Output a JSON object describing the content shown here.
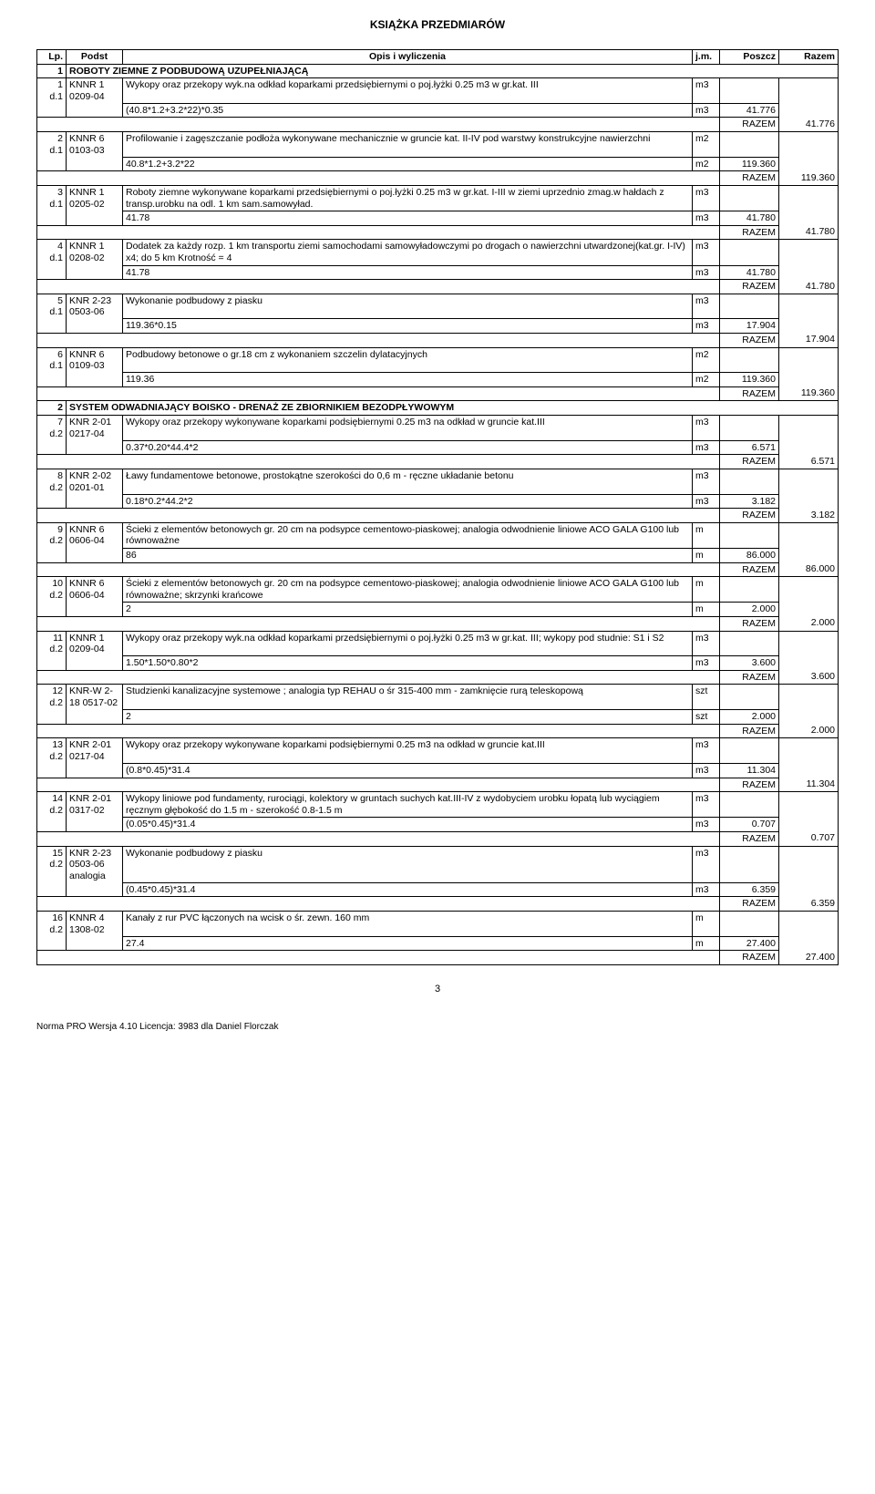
{
  "title": "KSIĄŻKA PRZEDMIARÓW",
  "header": {
    "lp": "Lp.",
    "podst": "Podst",
    "opis": "Opis i wyliczenia",
    "jm": "j.m.",
    "poszcz": "Poszcz",
    "razem": "Razem"
  },
  "section1": {
    "num": "1",
    "title": "ROBOTY ZIEMNE Z PODBUDOWĄ UZUPEŁNIAJĄCĄ"
  },
  "r1": {
    "lp": "1",
    "d": "d.1",
    "podst": "KNNR 1 0209-04",
    "opis": "Wykopy oraz przekopy wyk.na odkład koparkami przedsiębiernymi o poj.łyżki 0.25 m3 w gr.kat. III",
    "calc": "(40.8*1.2+3.2*22)*0.35",
    "jm": "m3",
    "poszcz": "41.776",
    "razem": "41.776"
  },
  "r2": {
    "lp": "2",
    "d": "d.1",
    "podst": "KNNR 6 0103-03",
    "opis": "Profilowanie i zagęszczanie podłoża wykonywane mechanicznie w gruncie kat. II-IV pod warstwy konstrukcyjne nawierzchni",
    "calc": "40.8*1.2+3.2*22",
    "jm": "m2",
    "poszcz": "119.360",
    "razem": "119.360"
  },
  "r3": {
    "lp": "3",
    "d": "d.1",
    "podst": "KNNR 1 0205-02",
    "opis": "Roboty ziemne wykonywane koparkami przedsiębiernymi o poj.łyżki 0.25 m3 w gr.kat. I-III w ziemi uprzednio zmag.w hałdach z transp.urobku na odl. 1 km sam.samowyład.",
    "calc": "41.78",
    "jm": "m3",
    "poszcz": "41.780",
    "razem": "41.780"
  },
  "r4": {
    "lp": "4",
    "d": "d.1",
    "podst": "KNNR 1 0208-02",
    "opis": "Dodatek za każdy rozp. 1 km transportu ziemi samochodami samowyładowczymi po drogach o nawierzchni utwardzonej(kat.gr. I-IV) x4; do 5 km Krotność = 4",
    "calc": "41.78",
    "jm": "m3",
    "poszcz": "41.780",
    "razem": "41.780"
  },
  "r5": {
    "lp": "5",
    "d": "d.1",
    "podst": "KNR 2-23 0503-06",
    "opis": "Wykonanie podbudowy z piasku",
    "calc": "119.36*0.15",
    "jm": "m3",
    "poszcz": "17.904",
    "razem": "17.904"
  },
  "r6": {
    "lp": "6",
    "d": "d.1",
    "podst": "KNNR 6 0109-03",
    "opis": "Podbudowy betonowe o gr.18 cm z wykonaniem szczelin dylatacyjnych",
    "calc": "119.36",
    "jm": "m2",
    "poszcz": "119.360",
    "razem": "119.360"
  },
  "section2": {
    "num": "2",
    "title": "SYSTEM ODWADNIAJĄCY BOISKO - DRENAŻ ZE ZBIORNIKIEM BEZODPŁYWOWYM"
  },
  "r7": {
    "lp": "7",
    "d": "d.2",
    "podst": "KNR 2-01 0217-04",
    "opis": "Wykopy oraz przekopy wykonywane koparkami podsiębiernymi 0.25 m3 na odkład w gruncie kat.III",
    "calc": "0.37*0.20*44.4*2",
    "jm": "m3",
    "poszcz": "6.571",
    "razem": "6.571"
  },
  "r8": {
    "lp": "8",
    "d": "d.2",
    "podst": "KNR 2-02 0201-01",
    "opis": "Ławy fundamentowe betonowe, prostokątne szerokości do 0,6 m - ręczne układanie betonu",
    "calc": "0.18*0.2*44.2*2",
    "jm": "m3",
    "poszcz": "3.182",
    "razem": "3.182"
  },
  "r9": {
    "lp": "9",
    "d": "d.2",
    "podst": "KNNR 6 0606-04",
    "opis": "Ścieki z elementów betonowych gr. 20 cm na podsypce cementowo-piaskowej; analogia odwodnienie liniowe ACO GALA G100 lub równoważne",
    "calc": "86",
    "jm": "m",
    "poszcz": "86.000",
    "razem": "86.000"
  },
  "r10": {
    "lp": "10",
    "d": "d.2",
    "podst": "KNNR 6 0606-04",
    "opis": "Ścieki z elementów betonowych gr. 20 cm na podsypce cementowo-piaskowej; analogia odwodnienie liniowe ACO GALA G100 lub równoważne; skrzynki krańcowe",
    "calc": "2",
    "jm": "m",
    "poszcz": "2.000",
    "razem": "2.000"
  },
  "r11": {
    "lp": "11",
    "d": "d.2",
    "podst": "KNNR 1 0209-04",
    "opis": "Wykopy oraz przekopy wyk.na odkład koparkami przedsiębiernymi o poj.łyżki 0.25 m3 w gr.kat. III; wykopy pod studnie: S1 i S2",
    "calc": "1.50*1.50*0.80*2",
    "jm": "m3",
    "poszcz": "3.600",
    "razem": "3.600"
  },
  "r12": {
    "lp": "12",
    "d": "d.2",
    "podst": "KNR-W 2-18 0517-02",
    "opis": "Studzienki kanalizacyjne systemowe ; analogia typ REHAU o śr 315-400 mm - zamknięcie rurą teleskopową",
    "calc": "2",
    "jm": "szt",
    "poszcz": "2.000",
    "razem": "2.000"
  },
  "r13": {
    "lp": "13",
    "d": "d.2",
    "podst": "KNR 2-01 0217-04",
    "opis": "Wykopy oraz przekopy wykonywane koparkami podsiębiernymi 0.25 m3 na odkład w gruncie kat.III",
    "calc": "(0.8*0.45)*31.4",
    "jm": "m3",
    "poszcz": "11.304",
    "razem": "11.304"
  },
  "r14": {
    "lp": "14",
    "d": "d.2",
    "podst": "KNR 2-01 0317-02",
    "opis": "Wykopy liniowe pod fundamenty, rurociągi, kolektory w gruntach suchych kat.III-IV z wydobyciem urobku łopatą lub wyciągiem ręcznym głębokość do 1.5 m - szerokość 0.8-1.5 m",
    "calc": "(0.05*0.45)*31.4",
    "jm": "m3",
    "poszcz": "0.707",
    "razem": "0.707"
  },
  "r15": {
    "lp": "15",
    "d": "d.2",
    "podst": "KNR 2-23 0503-06 analogia",
    "opis": "Wykonanie podbudowy z piasku",
    "calc": "(0.45*0.45)*31.4",
    "jm": "m3",
    "poszcz": "6.359",
    "razem": "6.359"
  },
  "r16": {
    "lp": "16",
    "d": "d.2",
    "podst": "KNNR 4 1308-02",
    "opis": "Kanały z rur PVC łączonych na wcisk o śr. zewn. 160 mm",
    "calc": "27.4",
    "jm": "m",
    "poszcz": "27.400",
    "razem": "27.400"
  },
  "razemLabel": "RAZEM",
  "pageNum": "3",
  "footer": "Norma PRO Wersja 4.10 Licencja: 3983 dla Daniel Florczak"
}
